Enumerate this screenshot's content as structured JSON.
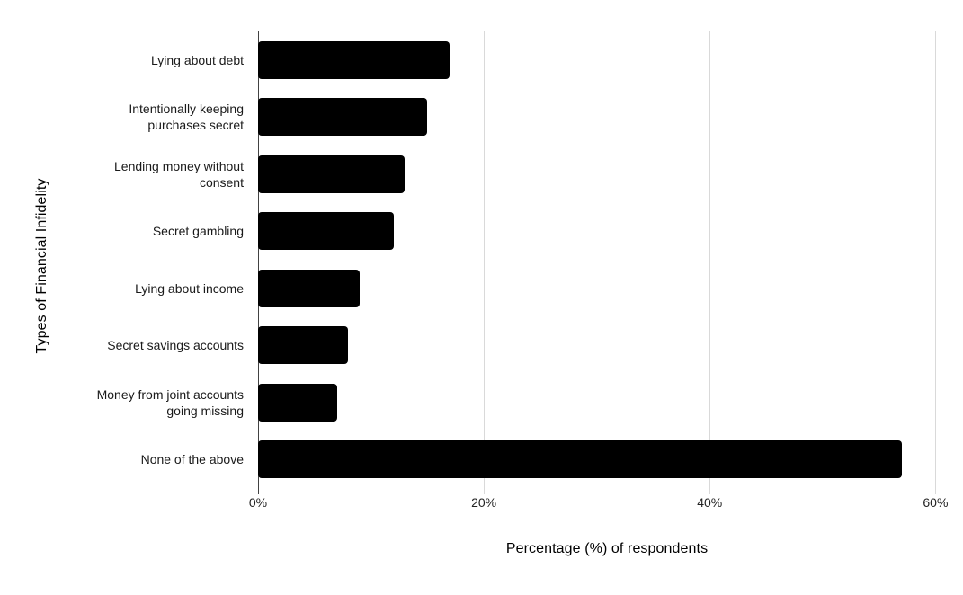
{
  "chart_data": {
    "type": "bar",
    "orientation": "horizontal",
    "title": "",
    "categories": [
      "Lying about debt",
      "Intentionally keeping purchases secret",
      "Lending money without consent",
      "Secret gambling",
      "Lying about income",
      "Secret savings accounts",
      "Money from joint accounts going missing",
      "None of the above"
    ],
    "values": [
      17,
      15,
      13,
      12,
      9,
      8,
      7,
      57
    ],
    "xlabel": "Percentage (%) of respondents",
    "ylabel": "Types of Financial Infidelity",
    "x_ticks": [
      {
        "label": "0%",
        "value": 0
      },
      {
        "label": "20%",
        "value": 20
      },
      {
        "label": "40%",
        "value": 40
      },
      {
        "label": "60%",
        "value": 60
      }
    ],
    "xlim": [
      0,
      61.8
    ],
    "grid": true,
    "legend": "none",
    "colors": {
      "bar": "#000000",
      "gridline": "#d9d9d9",
      "axis_line": "#424242",
      "label_text": "#1a1a1a",
      "background": "#ffffff"
    }
  }
}
